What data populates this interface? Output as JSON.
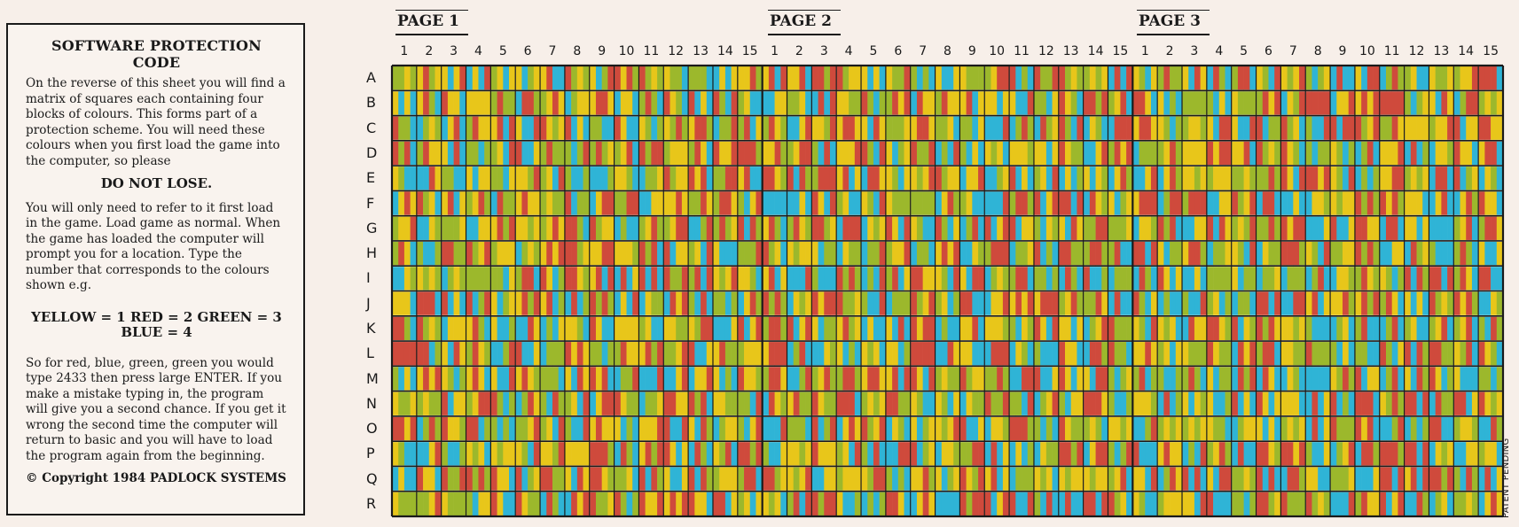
{
  "info": {
    "title": "SOFTWARE PROTECTION CODE",
    "para1": "On the reverse of this sheet you will find a matrix of squares each containing four blocks of colours. This forms part of a protection scheme. You will need these colours when you first load the game into the computer, so please",
    "warning": "DO NOT LOSE.",
    "para2": "You will only need to refer to it first load in the game. Load game as normal. When the game has loaded the computer will prompt you for a location. Type the number that corresponds to the colours shown e.g.",
    "codes_line1": "YELLOW = 1 RED = 2 GREEN = 3",
    "codes_line2": "BLUE = 4",
    "para3": "So for red, blue, green, green you would type 2433 then press large ENTER. If you make a mistake typing in, the program will give you a second chance. If you get it wrong the second time the computer will return to basic and you will have to load the program again from the beginning.",
    "copyright": "© Copyright 1984 PADLOCK SYSTEMS"
  },
  "pages": [
    "PAGE 1",
    "PAGE 2",
    "PAGE 3"
  ],
  "columns": [
    "1",
    "2",
    "3",
    "4",
    "5",
    "6",
    "7",
    "8",
    "9",
    "10",
    "11",
    "12",
    "13",
    "14",
    "15"
  ],
  "rows": [
    "A",
    "B",
    "C",
    "D",
    "E",
    "F",
    "G",
    "H",
    "I",
    "J",
    "K",
    "L",
    "M",
    "N",
    "O",
    "P",
    "Q",
    "R"
  ],
  "colors": {
    "yellow": "#e8c61a",
    "red": "#cf4a3c",
    "green": "#9cb82c",
    "blue": "#2fb4d6",
    "line": "#1a1a1a"
  },
  "patent": "PATENT PENDING"
}
